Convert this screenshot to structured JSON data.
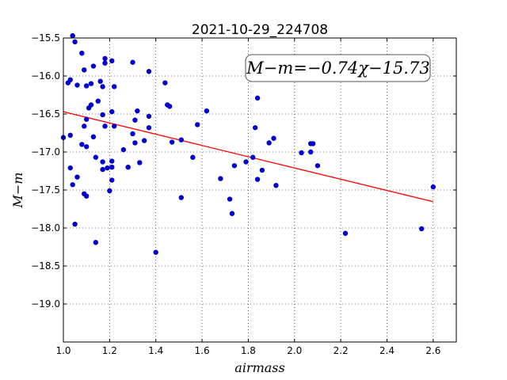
{
  "chart_data": {
    "type": "scatter",
    "title": "2021-10-29_224708",
    "xlabel": "airmass",
    "ylabel": "M−m",
    "xlim": [
      1.0,
      2.7
    ],
    "ylim": [
      -15.5,
      -19.5
    ],
    "y_inverted": true,
    "grid": true,
    "xticks": [
      "1.0",
      "1.2",
      "1.4",
      "1.6",
      "1.8",
      "2.0",
      "2.2",
      "2.4",
      "2.6"
    ],
    "yticks": [
      "−15.5",
      "−16.0",
      "−16.5",
      "−17.0",
      "−17.5",
      "−18.0",
      "−18.5",
      "−19.0"
    ],
    "annotation": "M−m=−0.74χ−15.73",
    "annotation_placement": "top-right",
    "points_color": "#0000cc",
    "fit_color": "#ff0000",
    "points": [
      {
        "x": 1.0,
        "y": -16.81
      },
      {
        "x": 1.02,
        "y": -16.09
      },
      {
        "x": 1.03,
        "y": -16.05
      },
      {
        "x": 1.03,
        "y": -16.78
      },
      {
        "x": 1.03,
        "y": -17.21
      },
      {
        "x": 1.04,
        "y": -17.43
      },
      {
        "x": 1.04,
        "y": -15.47
      },
      {
        "x": 1.05,
        "y": -15.55
      },
      {
        "x": 1.05,
        "y": -17.95
      },
      {
        "x": 1.06,
        "y": -17.33
      },
      {
        "x": 1.06,
        "y": -16.12
      },
      {
        "x": 1.08,
        "y": -15.7
      },
      {
        "x": 1.08,
        "y": -16.9
      },
      {
        "x": 1.09,
        "y": -16.66
      },
      {
        "x": 1.09,
        "y": -17.55
      },
      {
        "x": 1.09,
        "y": -15.92
      },
      {
        "x": 1.1,
        "y": -16.13
      },
      {
        "x": 1.1,
        "y": -16.57
      },
      {
        "x": 1.1,
        "y": -16.93
      },
      {
        "x": 1.1,
        "y": -17.58
      },
      {
        "x": 1.11,
        "y": -16.42
      },
      {
        "x": 1.12,
        "y": -16.1
      },
      {
        "x": 1.12,
        "y": -16.38
      },
      {
        "x": 1.13,
        "y": -15.87
      },
      {
        "x": 1.13,
        "y": -16.8
      },
      {
        "x": 1.14,
        "y": -17.07
      },
      {
        "x": 1.14,
        "y": -18.19
      },
      {
        "x": 1.15,
        "y": -16.33
      },
      {
        "x": 1.16,
        "y": -16.07
      },
      {
        "x": 1.17,
        "y": -16.14
      },
      {
        "x": 1.17,
        "y": -16.51
      },
      {
        "x": 1.17,
        "y": -17.13
      },
      {
        "x": 1.17,
        "y": -17.23
      },
      {
        "x": 1.18,
        "y": -15.77
      },
      {
        "x": 1.18,
        "y": -15.83
      },
      {
        "x": 1.18,
        "y": -16.66
      },
      {
        "x": 1.19,
        "y": -17.21
      },
      {
        "x": 1.2,
        "y": -17.51
      },
      {
        "x": 1.21,
        "y": -16.47
      },
      {
        "x": 1.21,
        "y": -17.12
      },
      {
        "x": 1.21,
        "y": -17.2
      },
      {
        "x": 1.21,
        "y": -17.37
      },
      {
        "x": 1.21,
        "y": -15.8
      },
      {
        "x": 1.22,
        "y": -16.14
      },
      {
        "x": 1.22,
        "y": -16.66
      },
      {
        "x": 1.26,
        "y": -16.97
      },
      {
        "x": 1.28,
        "y": -17.2
      },
      {
        "x": 1.3,
        "y": -15.82
      },
      {
        "x": 1.3,
        "y": -16.76
      },
      {
        "x": 1.31,
        "y": -16.58
      },
      {
        "x": 1.31,
        "y": -16.88
      },
      {
        "x": 1.32,
        "y": -16.46
      },
      {
        "x": 1.33,
        "y": -17.14
      },
      {
        "x": 1.35,
        "y": -16.85
      },
      {
        "x": 1.37,
        "y": -15.94
      },
      {
        "x": 1.37,
        "y": -16.53
      },
      {
        "x": 1.37,
        "y": -16.68
      },
      {
        "x": 1.4,
        "y": -18.32
      },
      {
        "x": 1.44,
        "y": -16.09
      },
      {
        "x": 1.45,
        "y": -16.38
      },
      {
        "x": 1.46,
        "y": -16.4
      },
      {
        "x": 1.47,
        "y": -16.87
      },
      {
        "x": 1.51,
        "y": -16.84
      },
      {
        "x": 1.51,
        "y": -17.6
      },
      {
        "x": 1.56,
        "y": -17.07
      },
      {
        "x": 1.58,
        "y": -16.64
      },
      {
        "x": 1.62,
        "y": -16.46
      },
      {
        "x": 1.68,
        "y": -17.35
      },
      {
        "x": 1.72,
        "y": -17.62
      },
      {
        "x": 1.73,
        "y": -17.81
      },
      {
        "x": 1.74,
        "y": -17.18
      },
      {
        "x": 1.79,
        "y": -17.13
      },
      {
        "x": 1.82,
        "y": -17.07
      },
      {
        "x": 1.83,
        "y": -16.68
      },
      {
        "x": 1.84,
        "y": -16.29
      },
      {
        "x": 1.84,
        "y": -17.36
      },
      {
        "x": 1.86,
        "y": -17.24
      },
      {
        "x": 1.89,
        "y": -16.88
      },
      {
        "x": 1.91,
        "y": -16.82
      },
      {
        "x": 1.92,
        "y": -17.44
      },
      {
        "x": 2.03,
        "y": -17.01
      },
      {
        "x": 2.07,
        "y": -17.0
      },
      {
        "x": 2.07,
        "y": -16.89
      },
      {
        "x": 2.08,
        "y": -16.89
      },
      {
        "x": 2.1,
        "y": -17.18
      },
      {
        "x": 2.22,
        "y": -18.07
      },
      {
        "x": 2.55,
        "y": -18.01
      },
      {
        "x": 2.6,
        "y": -17.46
      }
    ],
    "fit": {
      "slope": -0.74,
      "intercept": -15.73
    }
  }
}
